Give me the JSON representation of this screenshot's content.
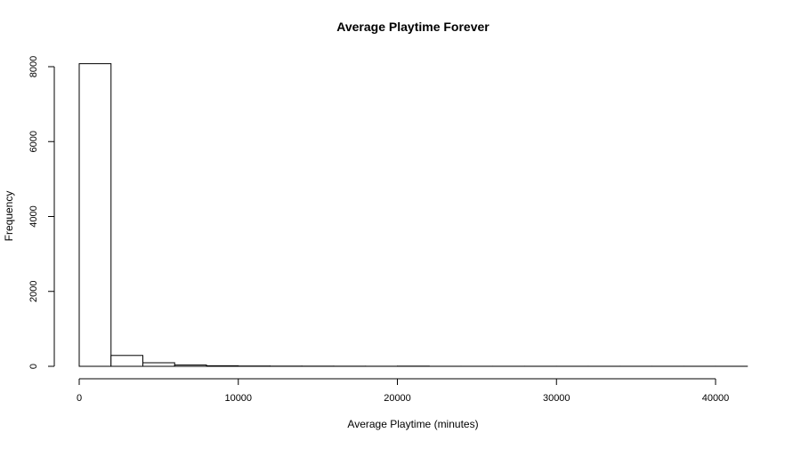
{
  "chart_data": {
    "type": "bar",
    "title": "Average Playtime Forever",
    "xlabel": "Average Playtime (minutes)",
    "ylabel": "Frequency",
    "bin_width": 2000,
    "bins": [
      {
        "x0": 0,
        "x1": 2000,
        "count": 8080
      },
      {
        "x0": 2000,
        "x1": 4000,
        "count": 290
      },
      {
        "x0": 4000,
        "x1": 6000,
        "count": 95
      },
      {
        "x0": 6000,
        "x1": 8000,
        "count": 35
      },
      {
        "x0": 8000,
        "x1": 10000,
        "count": 15
      },
      {
        "x0": 10000,
        "x1": 12000,
        "count": 8
      },
      {
        "x0": 12000,
        "x1": 14000,
        "count": 5
      },
      {
        "x0": 14000,
        "x1": 16000,
        "count": 4
      },
      {
        "x0": 16000,
        "x1": 18000,
        "count": 3
      },
      {
        "x0": 18000,
        "x1": 20000,
        "count": 2
      },
      {
        "x0": 20000,
        "x1": 22000,
        "count": 5
      },
      {
        "x0": 22000,
        "x1": 24000,
        "count": 1
      },
      {
        "x0": 24000,
        "x1": 26000,
        "count": 1
      },
      {
        "x0": 26000,
        "x1": 28000,
        "count": 1
      },
      {
        "x0": 28000,
        "x1": 30000,
        "count": 1
      },
      {
        "x0": 30000,
        "x1": 32000,
        "count": 1
      },
      {
        "x0": 32000,
        "x1": 34000,
        "count": 1
      },
      {
        "x0": 34000,
        "x1": 36000,
        "count": 1
      },
      {
        "x0": 36000,
        "x1": 38000,
        "count": 1
      },
      {
        "x0": 38000,
        "x1": 40000,
        "count": 1
      },
      {
        "x0": 40000,
        "x1": 42000,
        "count": 1
      }
    ],
    "xlim": [
      0,
      42000
    ],
    "ylim": [
      0,
      8080
    ],
    "x_ticks": [
      0,
      10000,
      20000,
      30000,
      40000
    ],
    "x_tick_labels": [
      "0",
      "10000",
      "20000",
      "30000",
      "40000"
    ],
    "y_ticks": [
      0,
      2000,
      4000,
      6000,
      8000
    ],
    "y_tick_labels": [
      "0",
      "2000",
      "4000",
      "6000",
      "8000"
    ],
    "grid": false,
    "legend": "none"
  }
}
